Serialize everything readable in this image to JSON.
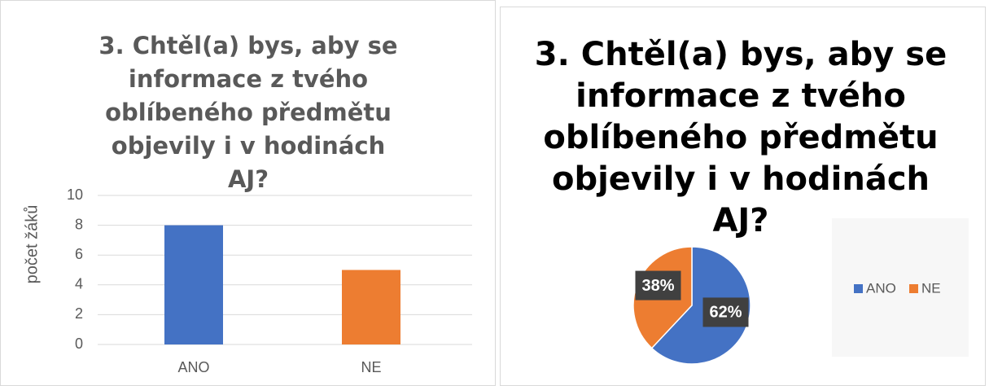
{
  "chart_data": [
    {
      "type": "bar",
      "title": "3. Chtěl(a) bys, aby se informace z tvého oblíbeného předmětu objevily i v hodinách AJ?",
      "y_label": "počet žáků",
      "categories": [
        "ANO",
        "NE"
      ],
      "values": [
        8,
        5
      ],
      "colors": [
        "#4472c4",
        "#ed7d31"
      ],
      "ylim": [
        0,
        10
      ],
      "yticks": [
        0,
        2,
        4,
        6,
        8,
        10
      ],
      "grid": true
    },
    {
      "type": "pie",
      "title": "3. Chtěl(a) bys, aby se informace z tvého oblíbeného předmětu objevily i v hodinách AJ?",
      "categories": [
        "ANO",
        "NE"
      ],
      "values": [
        62,
        38
      ],
      "value_labels": [
        "62%",
        "38%"
      ],
      "colors": [
        "#4472c4",
        "#ed7d31"
      ],
      "legend": "right"
    }
  ]
}
